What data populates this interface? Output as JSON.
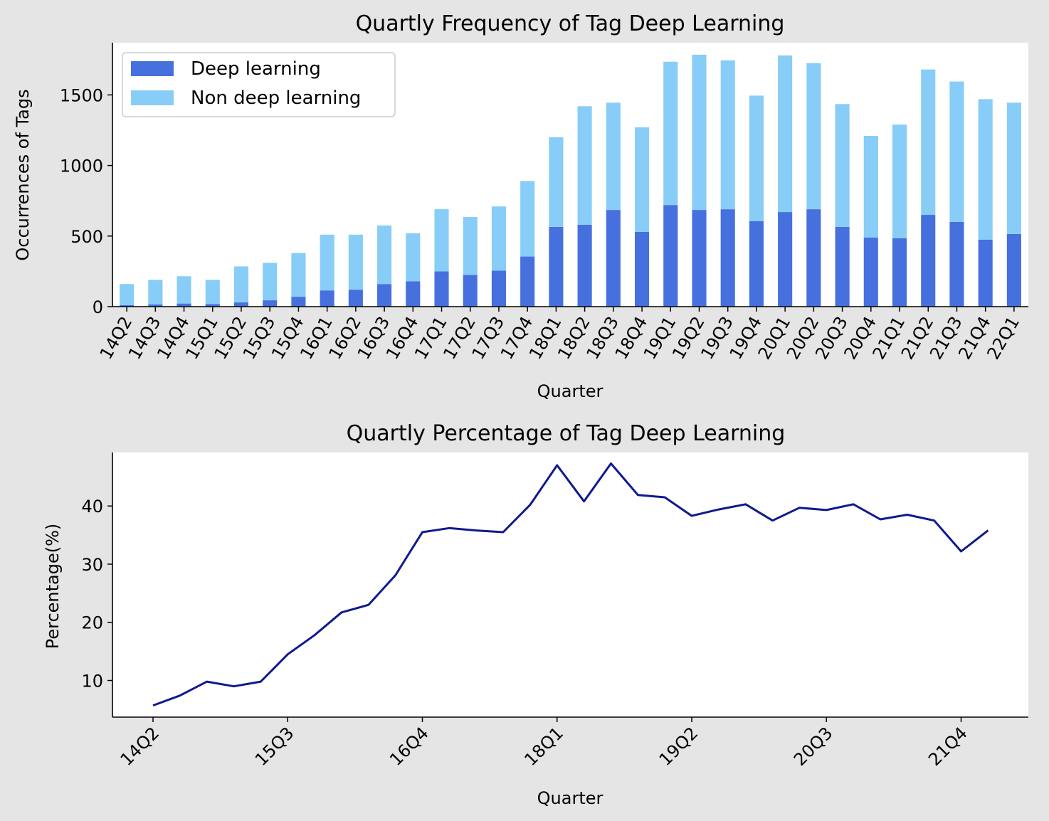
{
  "colors": {
    "background": "#e5e5e5",
    "plot_bg": "#ffffff",
    "deep": "#4570de",
    "non_deep": "#87cdf7",
    "line": "#10198f"
  },
  "chart_data": [
    {
      "type": "bar",
      "stacked": true,
      "title": "Quartly Frequency of Tag Deep Learning",
      "xlabel": "Quarter",
      "ylabel": "Occurrences of Tags",
      "ylim": [
        0,
        1870
      ],
      "yticks": [
        0,
        500,
        1000,
        1500
      ],
      "legend_position": "top-left",
      "categories": [
        "14Q2",
        "14Q3",
        "14Q4",
        "15Q1",
        "15Q2",
        "15Q3",
        "15Q4",
        "16Q1",
        "16Q2",
        "16Q3",
        "16Q4",
        "17Q1",
        "17Q2",
        "17Q3",
        "17Q4",
        "18Q1",
        "18Q2",
        "18Q3",
        "18Q4",
        "19Q1",
        "19Q2",
        "19Q3",
        "19Q4",
        "20Q1",
        "20Q2",
        "20Q3",
        "20Q4",
        "21Q1",
        "21Q2",
        "21Q3",
        "21Q4",
        "22Q1"
      ],
      "series": [
        {
          "name": "Deep learning",
          "values": [
            10,
            15,
            22,
            18,
            30,
            45,
            70,
            115,
            120,
            160,
            180,
            250,
            225,
            255,
            355,
            565,
            580,
            685,
            530,
            720,
            685,
            690,
            605,
            670,
            690,
            565,
            490,
            485,
            650,
            600,
            475,
            515
          ]
        },
        {
          "name": "Non deep learning",
          "values": [
            150,
            175,
            193,
            172,
            255,
            265,
            310,
            395,
            390,
            415,
            340,
            440,
            410,
            455,
            535,
            635,
            840,
            760,
            740,
            1015,
            1100,
            1055,
            890,
            1110,
            1035,
            870,
            720,
            805,
            1030,
            995,
            995,
            930
          ]
        }
      ]
    },
    {
      "type": "line",
      "title": "Quartly Percentage of Tag Deep Learning",
      "xlabel": "Quarter",
      "ylabel": "Percentage(%)",
      "ylim": [
        3.7,
        49.2
      ],
      "yticks": [
        10,
        20,
        30,
        40
      ],
      "xticks": [
        "14Q2",
        "15Q3",
        "16Q4",
        "18Q1",
        "19Q2",
        "20Q3",
        "21Q4"
      ],
      "x": [
        "14Q2",
        "14Q3",
        "14Q4",
        "15Q1",
        "15Q2",
        "15Q3",
        "15Q4",
        "16Q1",
        "16Q2",
        "16Q3",
        "16Q4",
        "17Q1",
        "17Q2",
        "17Q3",
        "17Q4",
        "18Q1",
        "18Q2",
        "18Q3",
        "18Q4",
        "19Q1",
        "19Q2",
        "19Q3",
        "19Q4",
        "20Q1",
        "20Q2",
        "20Q3",
        "20Q4",
        "21Q1",
        "21Q2",
        "21Q3",
        "21Q4",
        "22Q1"
      ],
      "values": [
        5.7,
        7.4,
        9.8,
        9.0,
        9.8,
        14.5,
        17.8,
        21.7,
        23.0,
        28.1,
        35.5,
        36.2,
        35.8,
        35.5,
        40.2,
        47.0,
        40.8,
        47.3,
        41.9,
        41.5,
        38.3,
        39.4,
        40.3,
        37.5,
        39.7,
        39.3,
        40.3,
        37.7,
        38.5,
        37.5,
        32.2,
        35.8
      ]
    }
  ]
}
